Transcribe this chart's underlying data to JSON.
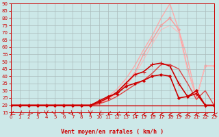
{
  "bg_color": "#cce8e8",
  "grid_color": "#aabbbb",
  "xlabel": "Vent moyen/en rafales ( km/h )",
  "xlabel_color": "#cc0000",
  "tick_color": "#cc0000",
  "xmin": 0,
  "xmax": 23,
  "ymin": 15,
  "ymax": 90,
  "yticks": [
    15,
    20,
    25,
    30,
    35,
    40,
    45,
    50,
    55,
    60,
    65,
    70,
    75,
    80,
    85,
    90
  ],
  "xticks": [
    0,
    1,
    2,
    3,
    4,
    5,
    6,
    7,
    8,
    9,
    10,
    11,
    12,
    13,
    14,
    15,
    16,
    17,
    18,
    19,
    20,
    21,
    22,
    23
  ],
  "series": [
    {
      "name": "flat_red",
      "x": [
        0,
        1,
        2,
        3,
        4,
        5,
        6,
        7,
        8,
        9,
        10,
        11,
        12,
        13,
        14,
        15,
        16,
        17,
        18,
        19,
        20,
        21,
        22,
        23
      ],
      "y": [
        20,
        20,
        20,
        20,
        20,
        20,
        20,
        20,
        20,
        20,
        20,
        20,
        20,
        20,
        20,
        20,
        20,
        20,
        20,
        20,
        20,
        20,
        20,
        20
      ],
      "color": "#cc0000",
      "lw": 1.0,
      "marker": null,
      "zorder": 2
    },
    {
      "name": "dark_red_diamond",
      "x": [
        0,
        1,
        2,
        3,
        4,
        5,
        6,
        7,
        8,
        9,
        10,
        11,
        12,
        13,
        14,
        15,
        16,
        17,
        18,
        19,
        20,
        21,
        22,
        23
      ],
      "y": [
        20,
        20,
        20,
        20,
        20,
        20,
        20,
        20,
        20,
        20,
        23,
        26,
        28,
        33,
        35,
        37,
        40,
        41,
        40,
        25,
        26,
        30,
        20,
        20
      ],
      "color": "#cc0000",
      "lw": 1.2,
      "marker": "D",
      "markersize": 2.0,
      "zorder": 3
    },
    {
      "name": "dark_red_plus",
      "x": [
        0,
        1,
        2,
        3,
        4,
        5,
        6,
        7,
        8,
        9,
        10,
        11,
        12,
        13,
        14,
        15,
        16,
        17,
        18,
        19,
        20,
        21,
        22,
        23
      ],
      "y": [
        20,
        20,
        20,
        20,
        20,
        20,
        20,
        20,
        20,
        20,
        22,
        25,
        29,
        35,
        41,
        43,
        48,
        49,
        47,
        35,
        26,
        28,
        20,
        20
      ],
      "color": "#cc0000",
      "lw": 1.2,
      "marker": "+",
      "markersize": 4.0,
      "zorder": 3
    },
    {
      "name": "medium_red_line",
      "x": [
        0,
        1,
        2,
        3,
        4,
        5,
        6,
        7,
        8,
        9,
        10,
        11,
        12,
        13,
        14,
        15,
        16,
        17,
        18,
        19,
        20,
        21,
        22,
        23
      ],
      "y": [
        20,
        20,
        20,
        20,
        20,
        20,
        20,
        20,
        20,
        20,
        21,
        23,
        26,
        30,
        34,
        37,
        42,
        48,
        48,
        45,
        35,
        24,
        30,
        20
      ],
      "color": "#dd4444",
      "lw": 1.0,
      "marker": null,
      "zorder": 2
    },
    {
      "name": "light_pink_line1",
      "x": [
        0,
        1,
        2,
        3,
        4,
        5,
        6,
        7,
        8,
        9,
        10,
        11,
        12,
        13,
        14,
        15,
        16,
        17,
        18,
        19,
        20,
        21,
        22,
        23
      ],
      "y": [
        20,
        20,
        20,
        20,
        20,
        20,
        20,
        20,
        20,
        20,
        21,
        24,
        28,
        35,
        42,
        55,
        65,
        75,
        80,
        72,
        45,
        25,
        47,
        47
      ],
      "color": "#ff9999",
      "lw": 1.0,
      "marker": "D",
      "markersize": 2.0,
      "zorder": 1
    },
    {
      "name": "light_pink_line2",
      "x": [
        0,
        1,
        2,
        3,
        4,
        5,
        6,
        7,
        8,
        9,
        10,
        11,
        12,
        13,
        14,
        15,
        16,
        17,
        18,
        19,
        20,
        21,
        22,
        23
      ],
      "y": [
        20,
        20,
        20,
        20,
        20,
        20,
        20,
        20,
        20,
        20,
        22,
        26,
        31,
        38,
        47,
        58,
        68,
        80,
        90,
        72,
        52,
        25,
        47,
        47
      ],
      "color": "#ffaaaa",
      "lw": 1.0,
      "marker": null,
      "zorder": 1
    },
    {
      "name": "light_pink_line3",
      "x": [
        0,
        1,
        2,
        3,
        4,
        5,
        6,
        7,
        8,
        9,
        10,
        11,
        12,
        13,
        14,
        15,
        16,
        17,
        18,
        19,
        20,
        21,
        22,
        23
      ],
      "y": [
        20,
        20,
        20,
        20,
        20,
        20,
        20,
        20,
        20,
        20,
        21,
        24,
        28,
        33,
        41,
        51,
        62,
        72,
        75,
        70,
        44,
        25,
        47,
        47
      ],
      "color": "#ffbbbb",
      "lw": 0.8,
      "marker": null,
      "zorder": 1
    }
  ],
  "arrow_angles": [
    210,
    200,
    195,
    190,
    180,
    175,
    170,
    165,
    170,
    180,
    200,
    210,
    215,
    220,
    230,
    240,
    240,
    250,
    250,
    260,
    260,
    270,
    270,
    280
  ]
}
